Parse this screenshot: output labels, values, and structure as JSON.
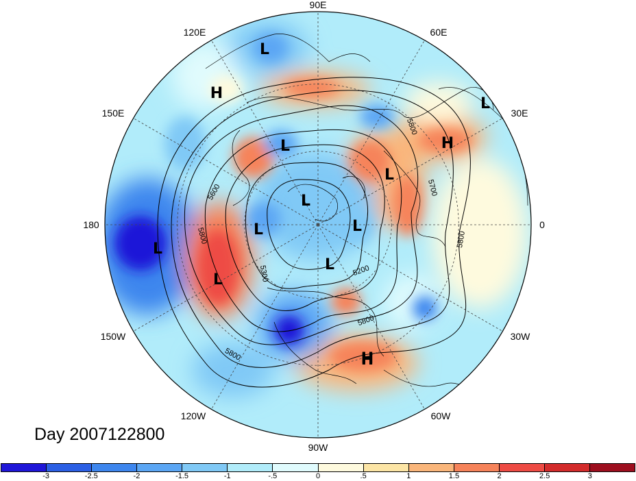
{
  "map": {
    "projection": "north-polar-stereographic",
    "center": "north-pole",
    "longitude_labels": [
      "90E",
      "60E",
      "30E",
      "0",
      "30W",
      "60W",
      "90W",
      "120W",
      "150W",
      "180",
      "150E",
      "120E"
    ],
    "pressure_centers": [
      {
        "type": "L",
        "label": "L",
        "region": "east-siberia"
      },
      {
        "type": "H",
        "label": "H",
        "region": "north-pacific-asia-coast"
      },
      {
        "type": "L",
        "label": "L",
        "region": "northern-europe"
      },
      {
        "type": "H",
        "label": "H",
        "region": "eastern-europe"
      },
      {
        "type": "L",
        "label": "L",
        "region": "central-siberia"
      },
      {
        "type": "L",
        "label": "L",
        "region": "mediterranean"
      },
      {
        "type": "L",
        "label": "L",
        "region": "arctic-east"
      },
      {
        "type": "L",
        "label": "L",
        "region": "east-siberian-sea"
      },
      {
        "type": "L",
        "label": "L",
        "region": "bering-sea"
      },
      {
        "type": "L",
        "label": "L",
        "region": "arctic-greenland-side"
      },
      {
        "type": "L",
        "label": "L",
        "region": "canadian-arctic"
      },
      {
        "type": "L",
        "label": "L",
        "region": "central-north-pacific"
      },
      {
        "type": "H",
        "label": "H",
        "region": "northeast-pacific"
      },
      {
        "type": "H",
        "label": "H",
        "region": "subtropical-atlantic"
      }
    ],
    "contour_labels": [
      "5600",
      "5800",
      "5800",
      "5700",
      "5800",
      "5800",
      "5300",
      "5200",
      "5800"
    ]
  },
  "title": {
    "day_label": "Day 2007122800"
  },
  "colorbar": {
    "colors": [
      "#1f16d8",
      "#2b5fe4",
      "#3d86ee",
      "#5ba6f4",
      "#80c9f6",
      "#b1ecfa",
      "#e0fbfd",
      "#fefade",
      "#fce5a5",
      "#fab67b",
      "#f6835a",
      "#ee4b44",
      "#d32b2b",
      "#9d0e1e"
    ],
    "tick_labels": [
      "-3",
      "-2.5",
      "-2",
      "-1.5",
      "-1",
      "-.5",
      "0",
      ".5",
      "1",
      "1.5",
      "2",
      "2.5",
      "3"
    ]
  }
}
